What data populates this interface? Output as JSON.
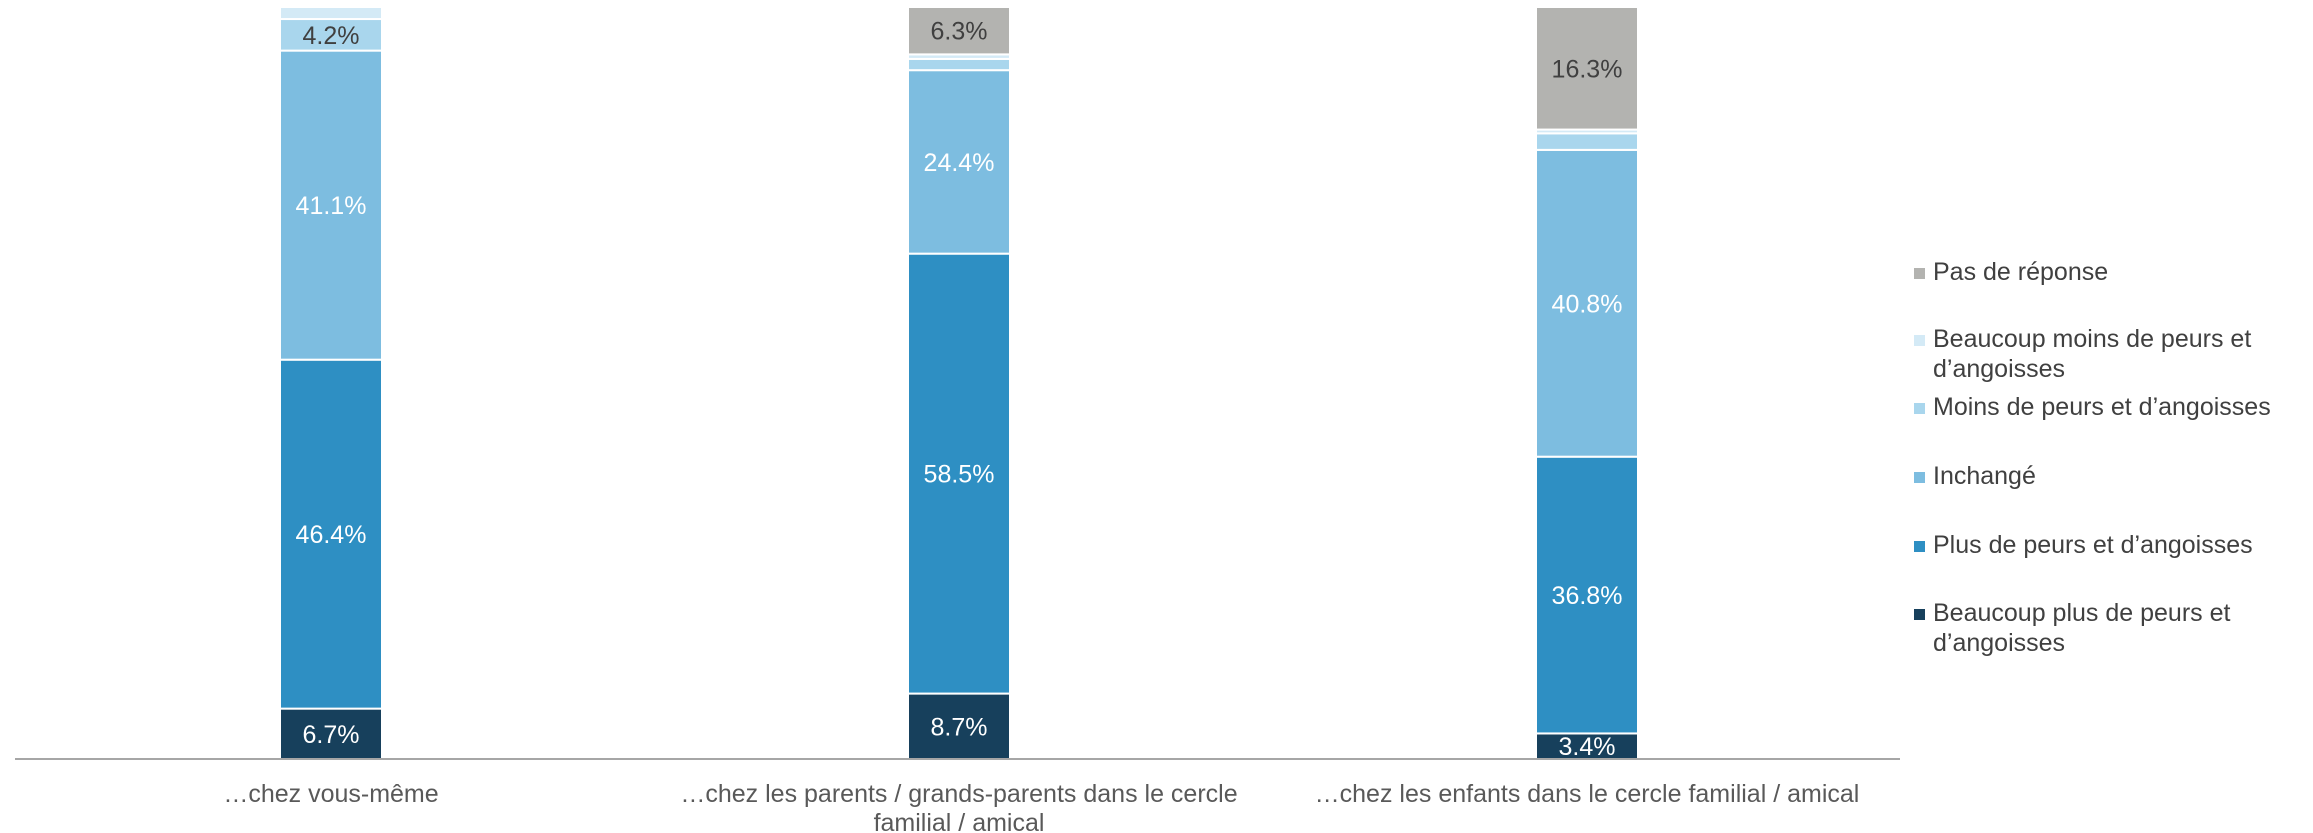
{
  "chart_data": {
    "type": "bar",
    "stacked": true,
    "percent": true,
    "categories": [
      [
        "…chez vous-même"
      ],
      [
        "…chez les parents / grands-parents dans le cercle",
        "familial / amical"
      ],
      [
        "…chez les enfants dans le cercle familial / amical"
      ]
    ],
    "series": [
      {
        "name": [
          "Beaucoup plus de peurs et",
          "d’angoisses"
        ],
        "color": "#17405C",
        "labelColor": "#ffffff",
        "values": [
          6.7,
          8.7,
          3.4
        ],
        "labels": [
          "6.7%",
          "8.7%",
          "3.4%"
        ]
      },
      {
        "name": [
          "Plus de peurs et d’angoisses"
        ],
        "color": "#2E8FC3",
        "labelColor": "#ffffff",
        "values": [
          46.4,
          58.5,
          36.8
        ],
        "labels": [
          "46.4%",
          "58.5%",
          "36.8%"
        ]
      },
      {
        "name": [
          "Inchangé"
        ],
        "color": "#7DBDE0",
        "labelColor": "#ffffff",
        "values": [
          41.1,
          24.4,
          40.8
        ],
        "labels": [
          "41.1%",
          "24.4%",
          "40.8%"
        ]
      },
      {
        "name": [
          "Moins de peurs et d’angoisses"
        ],
        "color": "#A9D6ED",
        "labelColor": "#404040",
        "values": [
          4.2,
          1.5,
          2.2
        ],
        "labels": [
          "4.2%",
          "",
          ""
        ]
      },
      {
        "name": [
          "Beaucoup moins de peurs et",
          "d’angoisses"
        ],
        "color": "#D4EAF6",
        "labelColor": "#404040",
        "values": [
          1.6,
          0.6,
          0.5
        ],
        "labels": [
          "",
          "",
          ""
        ]
      },
      {
        "name": [
          "Pas de réponse"
        ],
        "color": "#B3B3B0",
        "labelColor": "#404040",
        "values": [
          0,
          6.3,
          16.3
        ],
        "labels": [
          "",
          "6.3%",
          "16.3%"
        ]
      }
    ],
    "ylim": [
      0,
      100
    ],
    "grid": false,
    "legend_position": "right"
  }
}
